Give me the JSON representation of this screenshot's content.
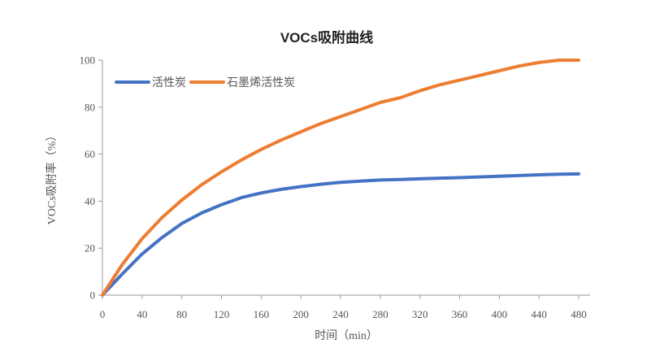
{
  "chart_data": {
    "type": "line",
    "title": "VOCs吸附曲线",
    "xlabel": "时间（min）",
    "ylabel": "VOCs吸附率（%）",
    "xlim": [
      0,
      480
    ],
    "ylim": [
      0,
      100
    ],
    "xticks": [
      0,
      40,
      80,
      120,
      160,
      200,
      240,
      280,
      320,
      360,
      400,
      440,
      480
    ],
    "yticks": [
      0,
      20,
      40,
      60,
      80,
      100
    ],
    "grid": false,
    "legend_position": "top-left",
    "series": [
      {
        "name": "活性炭",
        "color": "#4472C4",
        "x": [
          0,
          20,
          40,
          60,
          80,
          100,
          120,
          140,
          160,
          180,
          200,
          220,
          240,
          260,
          280,
          300,
          320,
          340,
          360,
          380,
          400,
          420,
          440,
          460,
          480
        ],
        "y": [
          0,
          9,
          17.5,
          24.5,
          30.5,
          35,
          38.5,
          41.5,
          43.5,
          45,
          46.2,
          47.2,
          48,
          48.5,
          49,
          49.2,
          49.5,
          49.8,
          50,
          50.3,
          50.6,
          50.9,
          51.2,
          51.5,
          51.6
        ]
      },
      {
        "name": "石墨烯活性炭",
        "color": "#ED7D31",
        "x": [
          0,
          20,
          40,
          60,
          80,
          100,
          120,
          140,
          160,
          180,
          200,
          220,
          240,
          260,
          280,
          300,
          320,
          340,
          360,
          380,
          400,
          420,
          440,
          460,
          480
        ],
        "y": [
          0,
          13,
          24,
          33,
          40.5,
          47,
          52.5,
          57.5,
          62,
          66,
          69.5,
          73,
          76,
          79,
          82,
          84,
          87,
          89.5,
          91.5,
          93.5,
          95.5,
          97.5,
          99,
          100,
          100
        ]
      }
    ]
  }
}
